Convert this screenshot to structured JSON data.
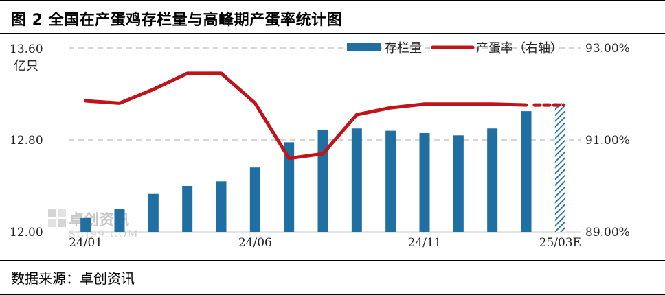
{
  "title": "图 2 全国在产蛋鸡存栏量与高峰期产蛋率统计图",
  "source": "数据来源：卓创资讯",
  "watermark": {
    "main": "卓创资讯",
    "sub": "SCI99.COM"
  },
  "colors": {
    "bar": "#1f6fa3",
    "line": "#c0141b",
    "grid": "#c8c8c8"
  },
  "chart_data": {
    "type": "bar",
    "categories": [
      "24/01",
      "24/02",
      "24/03",
      "24/04",
      "24/05",
      "24/06",
      "24/07",
      "24/08",
      "24/09",
      "24/10",
      "24/11",
      "24/12",
      "25/01",
      "25/02",
      "25/03E"
    ],
    "x_tick_labels": [
      "24/01",
      "24/06",
      "24/11",
      "25/03E"
    ],
    "y_left": {
      "unit_line1": "13.60",
      "unit_line2": "亿只",
      "min": 12.0,
      "max": 13.6,
      "ticks": [
        "12.00",
        "12.80",
        "13.60"
      ]
    },
    "y_right": {
      "min": 89.0,
      "max": 93.0,
      "ticks": [
        "89.00%",
        "91.00%",
        "93.00%"
      ]
    },
    "series": [
      {
        "name": "存栏量",
        "type": "bar",
        "axis": "left",
        "values": [
          12.12,
          12.2,
          12.33,
          12.4,
          12.44,
          12.56,
          12.78,
          12.89,
          12.9,
          12.88,
          12.86,
          12.84,
          12.9,
          13.05,
          13.12
        ],
        "forecast_last": true
      },
      {
        "name": "产蛋率（右轴）",
        "type": "line",
        "axis": "right",
        "values": [
          91.85,
          91.8,
          92.1,
          92.45,
          92.45,
          91.8,
          90.6,
          90.7,
          91.55,
          91.7,
          91.78,
          91.78,
          91.78,
          91.76,
          91.76
        ],
        "forecast_last": true
      }
    ],
    "legend": {
      "position": "top-right",
      "bar_label": "存栏量",
      "line_label": "产蛋率（右轴）"
    },
    "grid": true
  }
}
